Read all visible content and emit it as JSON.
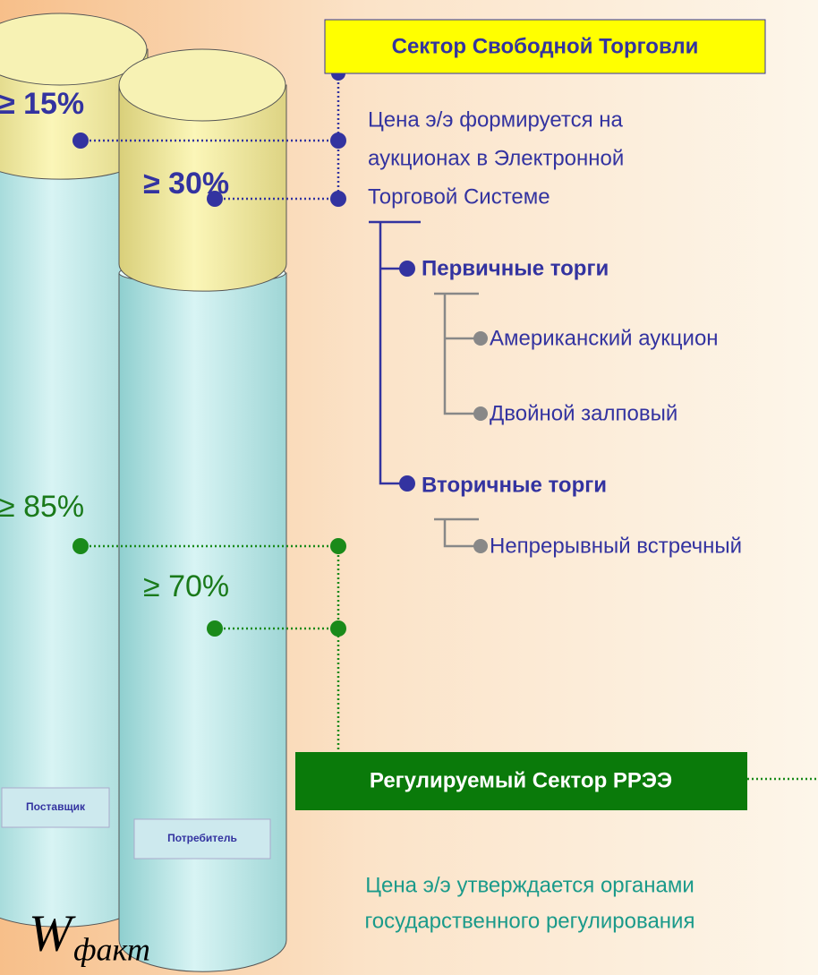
{
  "free_sector": {
    "title": "Сектор Свободной Торговли",
    "description": [
      "Цена э/э формируется на",
      "аукционах в Электронной",
      "Торговой Системе"
    ],
    "tree": [
      {
        "label": "Первичные торги",
        "children": [
          "Американский аукцион",
          "Двойной залповый"
        ]
      },
      {
        "label": "Вторичные торги",
        "children": [
          "Непрерывный встречный"
        ]
      }
    ]
  },
  "regulated_sector": {
    "title": "Регулируемый Сектор РРЭЭ",
    "description": [
      "Цена э/э утверждается органами",
      "государственного регулирования"
    ]
  },
  "cylinders": [
    {
      "label": "Поставщик",
      "free_share": "≥ 15%",
      "regulated_share": "≥ 85%"
    },
    {
      "label": "Потребитель",
      "free_share": "≥ 30%",
      "regulated_share": "≥ 70%"
    }
  ],
  "volume": {
    "symbol": "W",
    "subscript": "факт"
  }
}
